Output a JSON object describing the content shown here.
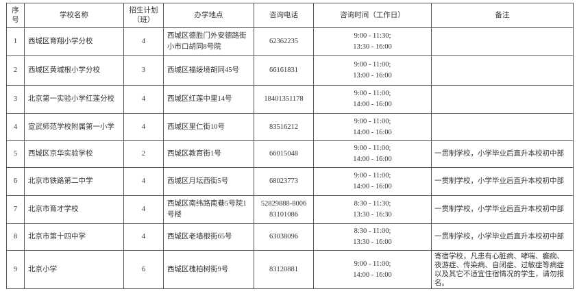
{
  "headers": [
    "序号",
    "学校名称",
    "招生计划（班）",
    "办学地点",
    "咨询电话",
    "咨询时间（工作日）",
    "备注"
  ],
  "rows": [
    {
      "no": "1",
      "name": "西城区育翔小学分校",
      "classes": "4",
      "address": "西城区德胜门外安德路街小市口胡同8号院",
      "phone": "62362235",
      "time1": "9:00 - 11:30;",
      "time2": "13:30 - 16:00",
      "note": ""
    },
    {
      "no": "2",
      "name": "西城区黄城根小学分校",
      "classes": "3",
      "address": "西城区福绥境胡同45号",
      "phone": "66161831",
      "time1": "9:00 - 11:00;",
      "time2": "13:00 - 16:00",
      "note": ""
    },
    {
      "no": "3",
      "name": "北京第一实验小学红莲分校",
      "classes": "4",
      "address": "西城区红莲中里14号",
      "phone": "18401351178",
      "time1": "9:00 - 11:00;",
      "time2": "14:00 - 16:00",
      "note": ""
    },
    {
      "no": "4",
      "name": "宣武师范学校附属第一小学",
      "classes": "4",
      "address": "西城区里仁街10号",
      "phone": "83516212",
      "time1": "9:00 - 11:00;",
      "time2": "14:00 - 16:00",
      "note": ""
    },
    {
      "no": "5",
      "name": "西城区京华实验学校",
      "classes": "2",
      "address": "西城区教育街1号",
      "phone": "66015048",
      "time1": "9:00 - 11:00;",
      "time2": "14:00 - 16:00",
      "note": "一贯制学校，小学毕业后直升本校初中部"
    },
    {
      "no": "6",
      "name": "北京市铁路第二中学",
      "classes": "4",
      "address": "西城区月坛西街5号",
      "phone": "68023773",
      "time1": "9:00 - 11:00;",
      "time2": "14:00 - 16:00",
      "note": "一贯制学校，小学毕业后直升本校初中部"
    },
    {
      "no": "7",
      "name": "北京市育才学校",
      "classes": "4",
      "address": "西城区南纬路南巷5号院1号楼",
      "phone": "52829888-8006",
      "phone2": "83101086",
      "time1": "8:30 - 11:30;",
      "time2": "13:30 - 16:30",
      "note": "一贯制学校，小学毕业后直升本校初中部"
    },
    {
      "no": "8",
      "name": "北京市第十四中学",
      "classes": "4",
      "address": "西城区老墙根街65号",
      "phone": "63038096",
      "time1": "8:30 - 11:00;",
      "time2": "13:30 - 16:00",
      "note": "一贯制学校，小学毕业后直升本校初中部"
    },
    {
      "no": "9",
      "name": "北京小学",
      "classes": "6",
      "address": "西城区槐柏树街9号",
      "phone": "83120881",
      "time1": "9:00 - 11:00;",
      "time2": "14:00 - 16:00",
      "note": "寄宿学校，凡患有心脏病、哮喘、癫痫、夜游症、传染病、自闭症、过敏症等病症以及其它不适宜住宿情况的学生，请勿报名。"
    }
  ]
}
